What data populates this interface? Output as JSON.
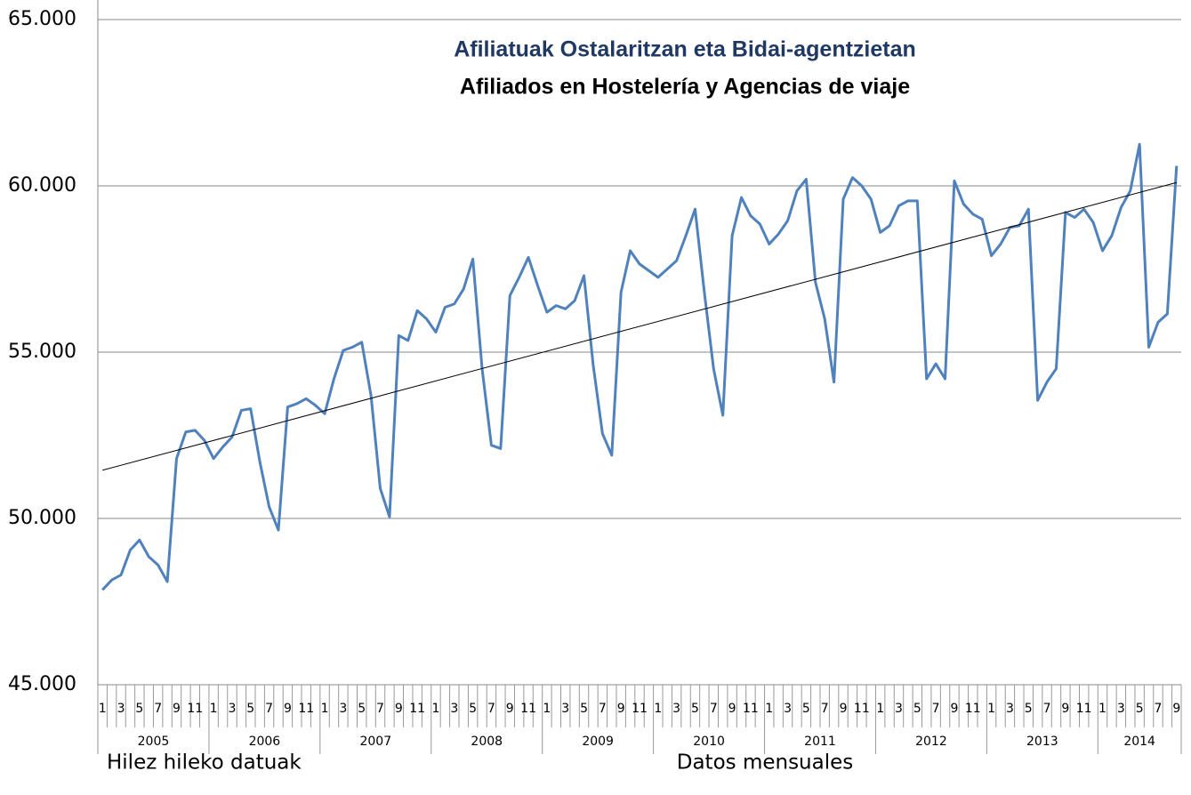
{
  "chart_data": {
    "type": "line",
    "title": "Afiliatuak Ostalaritzan eta Bidai-agentzietan",
    "subtitle": "Afiliados en Hostelería y Agencias de viaje",
    "footer_left": "Hilez hileko datuak",
    "footer_center": "Datos mensuales",
    "categories": [
      "1",
      null,
      "3",
      null,
      "5",
      null,
      "7",
      null,
      "9",
      null,
      "11",
      null,
      "1",
      null,
      "3",
      null,
      "5",
      null,
      "7",
      null,
      "9",
      null,
      "11",
      null,
      "1",
      null,
      "3",
      null,
      "5",
      null,
      "7",
      null,
      "9",
      null,
      "11",
      null,
      "1",
      null,
      "3",
      null,
      "5",
      null,
      "7",
      null,
      "9",
      null,
      "11",
      null,
      "1",
      null,
      "3",
      null,
      "5",
      null,
      "7",
      null,
      "9",
      null,
      "11",
      null,
      "1",
      null,
      "3",
      null,
      "5",
      null,
      "7",
      null,
      "9",
      null,
      "11",
      null,
      "1",
      null,
      "3",
      null,
      "5",
      null,
      "7",
      null,
      "9",
      null,
      "11",
      null,
      "1",
      null,
      "3",
      null,
      "5",
      null,
      "7",
      null,
      "9",
      null,
      "11",
      null,
      "1",
      null,
      "3",
      null,
      "5",
      null,
      "7",
      null,
      "9",
      null,
      "11",
      null,
      "1",
      null,
      "3",
      null,
      "5",
      null,
      "7",
      null,
      "9"
    ],
    "years": [
      "2005",
      "2006",
      "2007",
      "2008",
      "2009",
      "2010",
      "2011",
      "2012",
      "2013",
      "2014"
    ],
    "series": [
      {
        "color": "#4f81bd",
        "values": [
          47850,
          48150,
          48300,
          49050,
          49350,
          48850,
          48600,
          48100,
          51800,
          52600,
          52650,
          52350,
          51800,
          52150,
          52450,
          53250,
          53300,
          51700,
          50350,
          49650,
          53350,
          53450,
          53600,
          53400,
          53150,
          54200,
          55050,
          55150,
          55300,
          53700,
          50900,
          50050,
          55500,
          55350,
          56250,
          56000,
          55600,
          56350,
          56450,
          56900,
          57800,
          54500,
          52200,
          52100,
          56700,
          57250,
          57850,
          57000,
          56200,
          56400,
          56300,
          56550,
          57300,
          54600,
          52550,
          51900,
          56800,
          58050,
          57650,
          57450,
          57250,
          57500,
          57750,
          58500,
          59300,
          56800,
          54500,
          53100,
          58500,
          59650,
          59100,
          58850,
          58250,
          58550,
          58950,
          59850,
          60200,
          57100,
          56000,
          54100,
          59600,
          60250,
          60000,
          59600,
          58600,
          58800,
          59400,
          59550,
          59550,
          54200,
          54650,
          54200,
          60150,
          59450,
          59150,
          59000,
          57900,
          58250,
          58750,
          58800,
          59300,
          53550,
          54100,
          54500,
          59200,
          59050,
          59300,
          58900,
          58050,
          58500,
          59350,
          59850,
          61250,
          55150,
          55900,
          56150,
          60600
        ]
      }
    ],
    "trend": [
      51450,
      60100
    ],
    "trend_color": "#000000",
    "ylim": [
      45000,
      65000
    ],
    "yticks": [
      {
        "value": 45000,
        "label": "45.000"
      },
      {
        "value": 50000,
        "label": "50.000"
      },
      {
        "value": 55000,
        "label": "55.000"
      },
      {
        "value": 60000,
        "label": "60.000"
      },
      {
        "value": 65000,
        "label": "65.000"
      }
    ],
    "grid": true
  }
}
